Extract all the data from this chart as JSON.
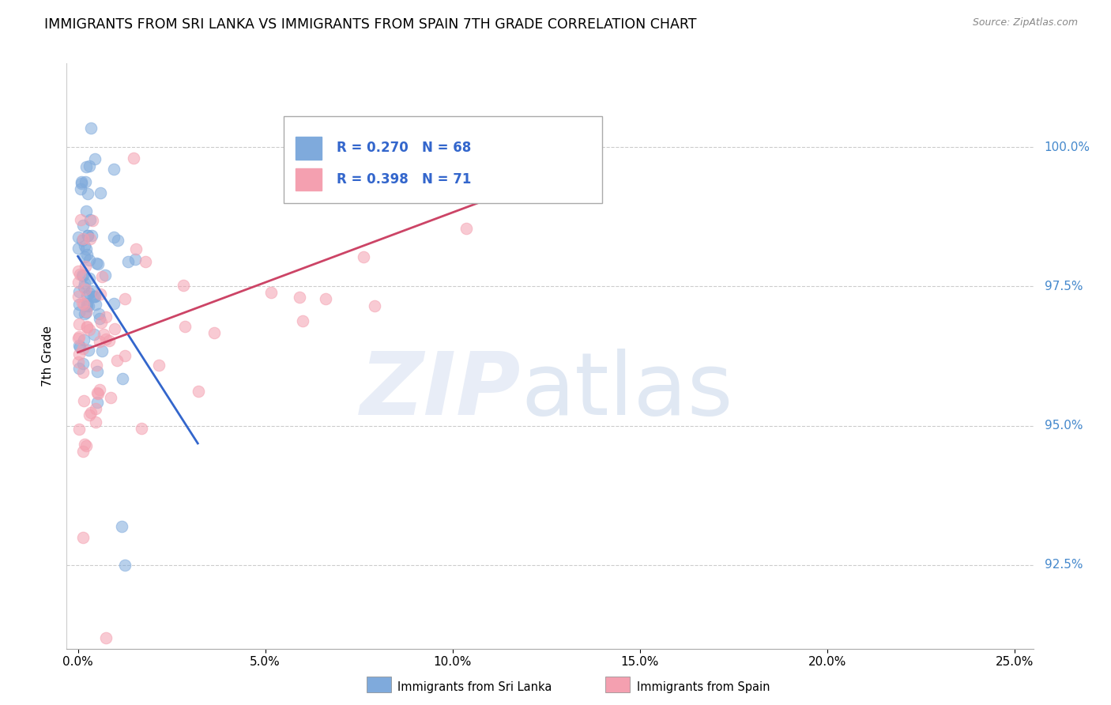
{
  "title": "IMMIGRANTS FROM SRI LANKA VS IMMIGRANTS FROM SPAIN 7TH GRADE CORRELATION CHART",
  "source": "Source: ZipAtlas.com",
  "ylabel": "7th Grade",
  "xlim": [
    0.0,
    25.0
  ],
  "ylim": [
    91.0,
    101.5
  ],
  "yticks": [
    92.5,
    95.0,
    97.5,
    100.0
  ],
  "ytick_labels": [
    "92.5%",
    "95.0%",
    "97.5%",
    "100.0%"
  ],
  "xticks": [
    0.0,
    5.0,
    10.0,
    15.0,
    20.0,
    25.0
  ],
  "xtick_labels": [
    "0.0%",
    "5.0%",
    "10.0%",
    "15.0%",
    "20.0%",
    "25.0%"
  ],
  "blue_color": "#7faadc",
  "pink_color": "#f4a0b0",
  "blue_line_color": "#3366cc",
  "pink_line_color": "#cc4466",
  "blue_R": 0.27,
  "blue_N": 68,
  "pink_R": 0.398,
  "pink_N": 71,
  "blue_label": "Immigrants from Sri Lanka",
  "pink_label": "Immigrants from Spain",
  "watermark_zip": "ZIP",
  "watermark_atlas": "atlas"
}
